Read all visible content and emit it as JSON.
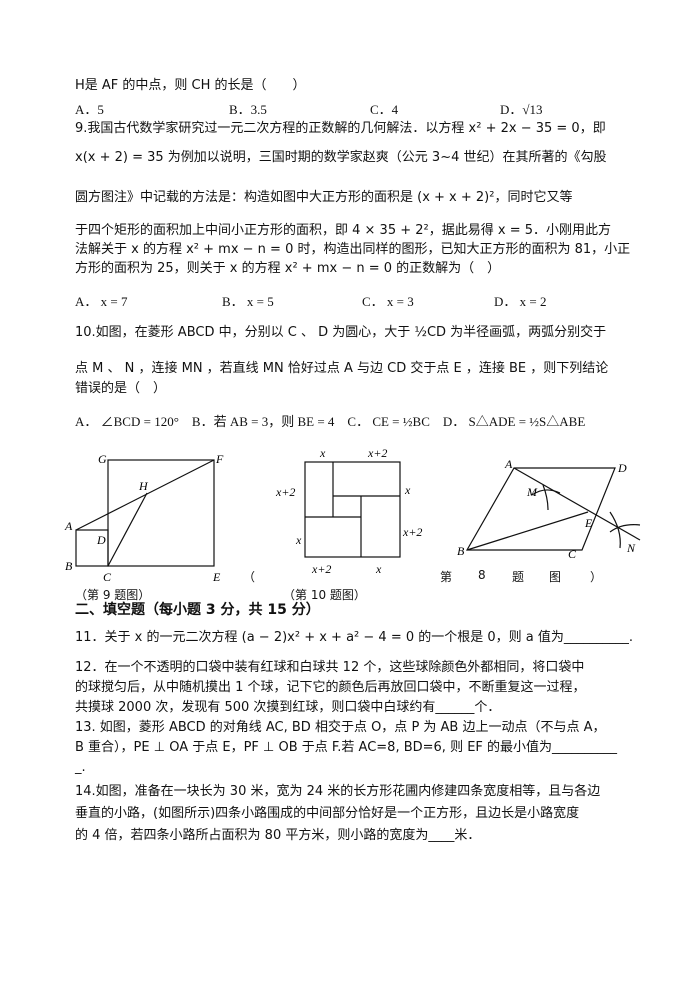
{
  "q8_tail": {
    "line": "H是 AF 的中点，则 CH 的长是（　　）",
    "options": [
      "A．5",
      "B．3.5",
      "C．4",
      "D．√13"
    ]
  },
  "q9": {
    "lines": [
      "9.我国古代数学家研究过一元二次方程的正数解的几何解法．以方程 x² + 2x − 35 = 0，即",
      "x(x + 2) = 35 为例加以说明，三国时期的数学家赵爽（公元 3~4 世纪）在其所著的《勾股",
      "圆方图注》中记载的方法是：构造如图中大正方形的面积是 (x + x + 2)²，同时它又等",
      "于四个矩形的面积加上中间小正方形的面积，即 4 × 35 + 2²，据此易得 x = 5．小刚用此方",
      "法解关于 x 的方程 x² + mx − n = 0 时，构造出同样的图形，已知大正方形的面积为 81，小正",
      "方形的面积为 25，则关于 x 的方程 x² + mx − n = 0 的正数解为（　）"
    ],
    "options": [
      "A． x = 7",
      "B． x = 5",
      "C． x = 3",
      "D． x = 2"
    ]
  },
  "q10": {
    "lines": [
      "10.如图，在菱形 ABCD 中，分别以 C 、 D 为圆心，大于 ½CD 为半径画弧，两弧分别交于",
      "点 M 、 N ，连接 MN ，若直线 MN 恰好过点 A 与边 CD 交于点 E ，连接 BE ，则下列结论",
      "错误的是（　）"
    ],
    "options": [
      "A． ∠BCD = 120°　B．若 AB = 3，则 BE = 4　C． CE = ½BC　D． S△ADE = ½S△ABE"
    ]
  },
  "figures": {
    "fig9": {
      "labels": {
        "G": "G",
        "F": "F",
        "H": "H",
        "A": "A",
        "D": "D",
        "B": "B",
        "C": "C",
        "E": "E"
      },
      "caption": "（第 9 题图）"
    },
    "fig10": {
      "labels": [
        "x",
        "x+2",
        "x+2",
        "x",
        "x",
        "x+2",
        "x+2",
        "x"
      ],
      "caption": "（第 10 题图）"
    },
    "fig8": {
      "labels": {
        "A": "A",
        "D": "D",
        "M": "M",
        "E": "E",
        "N": "N",
        "B": "B",
        "C": "C"
      },
      "caption": [
        "（",
        "第",
        "8",
        "题",
        "图",
        "）"
      ]
    }
  },
  "section2": {
    "title": "二、填空题（每小题 3 分，共 15 分）"
  },
  "q11": {
    "line": "11．关于 x 的一元二次方程 (a − 2)x² + x + a² − 4 = 0 的一个根是 0，则 a 值为__________."
  },
  "q12": {
    "lines": [
      "12．在一个不透明的口袋中装有红球和白球共 12 个，这些球除颜色外都相同，将口袋中",
      "的球搅匀后，从中随机摸出 1 个球，记下它的颜色后再放回口袋中，不断重复这一过程，",
      "共摸球 2000 次，发现有 500 次摸到红球，则口袋中白球约有______个．"
    ]
  },
  "q13": {
    "lines": [
      "13.  如图，菱形 ABCD 的对角线 AC, BD 相交于点 O，点 P 为 AB 边上一动点（不与点 A，",
      "B 重合），PE ⊥ OA 于点 E，PF ⊥ OB 于点 F.若 AC=8, BD=6, 则 EF 的最小值为__________",
      "_."
    ]
  },
  "q14": {
    "lines": [
      "14.如图，准备在一块长为 30 米，宽为 24 米的长方形花圃内修建四条宽度相等，且与各边",
      "垂直的小路，(如图所示)四条小路围成的中间部分恰好是一个正方形，且边长是小路宽度",
      "的 4 倍，若四条小路所占面积为 80 平方米，则小路的宽度为____米．"
    ]
  }
}
